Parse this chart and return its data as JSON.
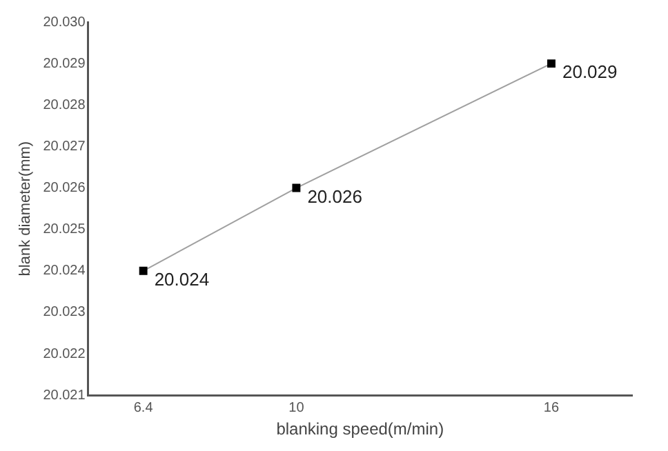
{
  "chart_data": {
    "type": "line",
    "xlabel": "blanking speed(m/min)",
    "ylabel": "blank diameter(mm)",
    "x": [
      6.4,
      10,
      16
    ],
    "series": [
      {
        "color": "#000000",
        "values": [
          20.024,
          20.026,
          20.029
        ]
      }
    ],
    "xlim": [
      5.1,
      17.9
    ],
    "xticks": [
      6.4,
      10,
      16
    ],
    "ylim": [
      20.021,
      20.03
    ],
    "yticks": [
      {
        "value": 20.021,
        "label": "20.021"
      },
      {
        "value": 20.022,
        "label": "20.022"
      },
      {
        "value": 20.023,
        "label": "20.023"
      },
      {
        "value": 20.024,
        "label": "20.024"
      },
      {
        "value": 20.025,
        "label": "20.025"
      },
      {
        "value": 20.026,
        "label": "20.026"
      },
      {
        "value": 20.027,
        "label": "20.027"
      },
      {
        "value": 20.028,
        "label": "20.028"
      },
      {
        "value": 20.029,
        "label": "20.029"
      },
      {
        "value": 20.03,
        "label": "20.030"
      }
    ],
    "marker": "square",
    "line_style": "solid",
    "grid": false,
    "legend": false,
    "data_labels": true
  }
}
